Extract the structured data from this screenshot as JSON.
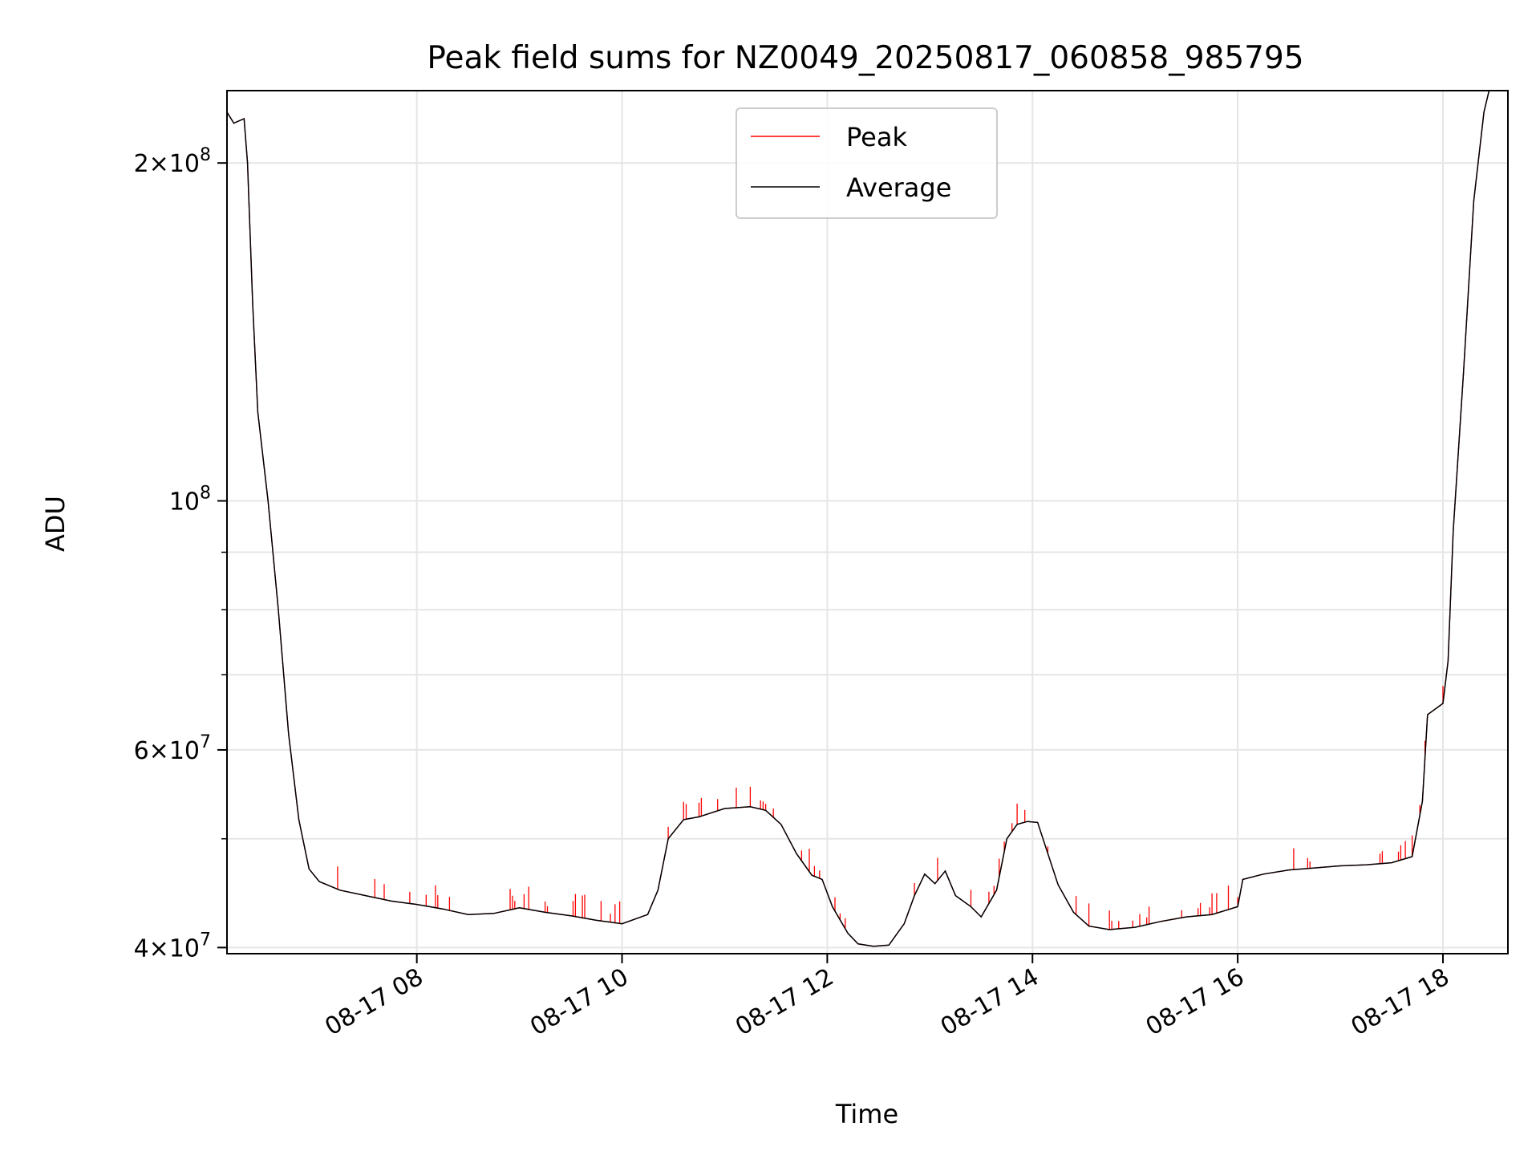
{
  "chart_data": {
    "type": "line",
    "title": "Peak field sums for NZ0049_20250817_060858_985795",
    "xlabel": "Time",
    "ylabel": "ADU",
    "yscale": "log",
    "xlim": [
      "2025-08-17 06:09",
      "2025-08-17 18:38"
    ],
    "ylim": [
      39500000,
      232000000
    ],
    "x_ticks": [
      "08-17 08",
      "08-17 10",
      "08-17 12",
      "08-17 14",
      "08-17 16",
      "08-17 18"
    ],
    "y_ticks": [
      {
        "value": 40000000,
        "base": "4",
        "exp": "7"
      },
      {
        "value": 60000000,
        "base": "6",
        "exp": "7"
      },
      {
        "value": 100000000,
        "base": "",
        "exp": "8"
      },
      {
        "value": 200000000,
        "base": "2",
        "exp": "8"
      }
    ],
    "grid": true,
    "legend_position": "upper center",
    "series": [
      {
        "name": "Peak",
        "color": "#ff0000"
      },
      {
        "name": "Average",
        "color": "#000000"
      }
    ],
    "average_points": [
      [
        "2025-08-17 06:09",
        222000000
      ],
      [
        "2025-08-17 06:13",
        217000000
      ],
      [
        "2025-08-17 06:19",
        219000000
      ],
      [
        "2025-08-17 06:21",
        200000000
      ],
      [
        "2025-08-17 06:24",
        150000000
      ],
      [
        "2025-08-17 06:27",
        120000000
      ],
      [
        "2025-08-17 06:33",
        100000000
      ],
      [
        "2025-08-17 06:39",
        80000000
      ],
      [
        "2025-08-17 06:45",
        62000000
      ],
      [
        "2025-08-17 06:51",
        52000000
      ],
      [
        "2025-08-17 06:57",
        47000000
      ],
      [
        "2025-08-17 07:03",
        45800000
      ],
      [
        "2025-08-17 07:15",
        45000000
      ],
      [
        "2025-08-17 07:30",
        44500000
      ],
      [
        "2025-08-17 07:45",
        44000000
      ],
      [
        "2025-08-17 08:00",
        43700000
      ],
      [
        "2025-08-17 08:15",
        43300000
      ],
      [
        "2025-08-17 08:30",
        42800000
      ],
      [
        "2025-08-17 08:45",
        42900000
      ],
      [
        "2025-08-17 09:00",
        43400000
      ],
      [
        "2025-08-17 09:15",
        43000000
      ],
      [
        "2025-08-17 09:30",
        42700000
      ],
      [
        "2025-08-17 09:45",
        42300000
      ],
      [
        "2025-08-17 10:00",
        42000000
      ],
      [
        "2025-08-17 10:15",
        42800000
      ],
      [
        "2025-08-17 10:21",
        45000000
      ],
      [
        "2025-08-17 10:27",
        50000000
      ],
      [
        "2025-08-17 10:36",
        52000000
      ],
      [
        "2025-08-17 10:45",
        52300000
      ],
      [
        "2025-08-17 11:00",
        53200000
      ],
      [
        "2025-08-17 11:15",
        53400000
      ],
      [
        "2025-08-17 11:24",
        53000000
      ],
      [
        "2025-08-17 11:33",
        51500000
      ],
      [
        "2025-08-17 11:42",
        48500000
      ],
      [
        "2025-08-17 11:51",
        46400000
      ],
      [
        "2025-08-17 11:57",
        46000000
      ],
      [
        "2025-08-17 12:03",
        43500000
      ],
      [
        "2025-08-17 12:12",
        41200000
      ],
      [
        "2025-08-17 12:18",
        40300000
      ],
      [
        "2025-08-17 12:27",
        40100000
      ],
      [
        "2025-08-17 12:36",
        40200000
      ],
      [
        "2025-08-17 12:45",
        42000000
      ],
      [
        "2025-08-17 12:51",
        44500000
      ],
      [
        "2025-08-17 12:57",
        46500000
      ],
      [
        "2025-08-17 13:03",
        45600000
      ],
      [
        "2025-08-17 13:09",
        46800000
      ],
      [
        "2025-08-17 13:15",
        44500000
      ],
      [
        "2025-08-17 13:24",
        43500000
      ],
      [
        "2025-08-17 13:30",
        42600000
      ],
      [
        "2025-08-17 13:39",
        45000000
      ],
      [
        "2025-08-17 13:45",
        50000000
      ],
      [
        "2025-08-17 13:51",
        51500000
      ],
      [
        "2025-08-17 13:57",
        51800000
      ],
      [
        "2025-08-17 14:03",
        51700000
      ],
      [
        "2025-08-17 14:09",
        48500000
      ],
      [
        "2025-08-17 14:15",
        45500000
      ],
      [
        "2025-08-17 14:24",
        43000000
      ],
      [
        "2025-08-17 14:33",
        41800000
      ],
      [
        "2025-08-17 14:45",
        41500000
      ],
      [
        "2025-08-17 15:00",
        41700000
      ],
      [
        "2025-08-17 15:15",
        42200000
      ],
      [
        "2025-08-17 15:30",
        42600000
      ],
      [
        "2025-08-17 15:45",
        42800000
      ],
      [
        "2025-08-17 16:00",
        43500000
      ],
      [
        "2025-08-17 16:03",
        46000000
      ],
      [
        "2025-08-17 16:15",
        46500000
      ],
      [
        "2025-08-17 16:30",
        46900000
      ],
      [
        "2025-08-17 16:45",
        47100000
      ],
      [
        "2025-08-17 17:00",
        47300000
      ],
      [
        "2025-08-17 17:15",
        47400000
      ],
      [
        "2025-08-17 17:30",
        47600000
      ],
      [
        "2025-08-17 17:42",
        48200000
      ],
      [
        "2025-08-17 17:48",
        54000000
      ],
      [
        "2025-08-17 17:51",
        64500000
      ],
      [
        "2025-08-17 18:00",
        66000000
      ],
      [
        "2025-08-17 18:03",
        72000000
      ],
      [
        "2025-08-17 18:06",
        94000000
      ],
      [
        "2025-08-17 18:12",
        130000000
      ],
      [
        "2025-08-17 18:18",
        185000000
      ],
      [
        "2025-08-17 18:24",
        222000000
      ],
      [
        "2025-08-17 18:27",
        232000000
      ],
      [
        "2025-08-17 18:38",
        232000000
      ]
    ]
  }
}
